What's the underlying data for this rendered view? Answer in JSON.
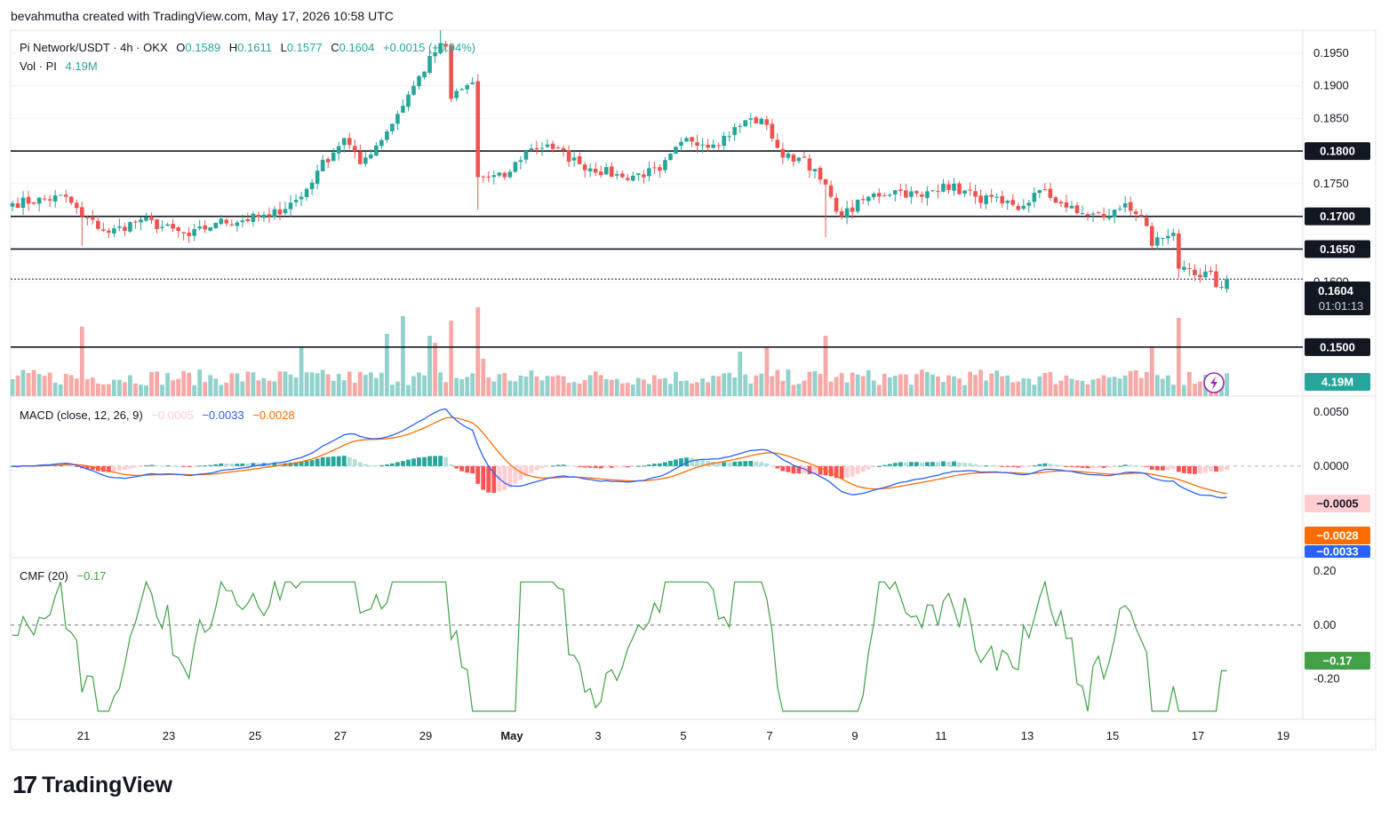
{
  "header": {
    "attribution": "bevahmutha created with TradingView.com, May 17, 2026 10:58 UTC"
  },
  "legend": {
    "symbol": "Pi Network/USDT · 4h · OKX",
    "o_label": "O",
    "o_value": "0.1589",
    "h_label": "H",
    "h_value": "0.1611",
    "l_label": "L",
    "l_value": "0.1577",
    "c_label": "C",
    "c_value": "0.1604",
    "change": "+0.0015 (+0.94%)",
    "vol_label": "Vol · PI",
    "vol_value": "4.19M"
  },
  "macd_legend": {
    "label": "MACD (close, 12, 26, 9)",
    "hist": "−0.0005",
    "macd": "−0.0033",
    "signal": "−0.0028"
  },
  "cmf_legend": {
    "label": "CMF (20)",
    "value": "−0.17"
  },
  "price_badges": {
    "current": "0.1604",
    "countdown": "01:01:13",
    "volume": "4.19M",
    "macd_hist": "−0.0005",
    "macd_signal": "−0.0028",
    "macd_line": "−0.0033",
    "cmf": "−0.17"
  },
  "logo": {
    "text": "TradingView"
  },
  "colors": {
    "up": "#26a69a",
    "down": "#ef5350",
    "up_vol": "#92d2cc",
    "down_vol": "#f7a9a7",
    "macd": "#2962ff",
    "signal": "#ff6d00",
    "hist_up_strong": "#26a69a",
    "hist_up_weak": "#b2dfdb",
    "hist_down_strong": "#ff5252",
    "hist_down_weak": "#ffcdd2",
    "cmf": "#43a047",
    "hline": "#131722"
  },
  "chart_data": {
    "type": "candlestick",
    "price_axis": {
      "ylim": [
        0.1425,
        0.1985
      ],
      "ticks": [
        "0.1950",
        "0.1900",
        "0.1850",
        "0.1800",
        "0.1750",
        "0.1700",
        "0.1650",
        "0.1600",
        "0.1500"
      ]
    },
    "macd_axis": {
      "ylim": [
        -0.0085,
        0.0065
      ],
      "ticks": [
        "0.0050",
        "0.0000"
      ]
    },
    "cmf_axis": {
      "ylim": [
        -0.35,
        0.25
      ],
      "ticks": [
        "0.20",
        "0.00",
        "-0.20"
      ]
    },
    "x_ticks": [
      "21",
      "23",
      "25",
      "27",
      "29",
      "May",
      "3",
      "5",
      "7",
      "9",
      "11",
      "13",
      "15",
      "17",
      "19"
    ],
    "horizontal_levels": [
      0.18,
      0.17,
      0.165,
      0.15
    ],
    "level_labels": [
      "0.1800",
      "0.1700",
      "0.1650",
      "0.1500"
    ],
    "current_price": 0.1604,
    "anchors": [
      {
        "i": 0,
        "p": 0.172
      },
      {
        "i": 10,
        "p": 0.173
      },
      {
        "i": 13,
        "p": 0.17
      },
      {
        "i": 18,
        "p": 0.1675
      },
      {
        "i": 24,
        "p": 0.1695
      },
      {
        "i": 33,
        "p": 0.167
      },
      {
        "i": 38,
        "p": 0.169
      },
      {
        "i": 48,
        "p": 0.17
      },
      {
        "i": 54,
        "p": 0.173
      },
      {
        "i": 57,
        "p": 0.177
      },
      {
        "i": 62,
        "p": 0.182
      },
      {
        "i": 65,
        "p": 0.178
      },
      {
        "i": 70,
        "p": 0.183
      },
      {
        "i": 75,
        "p": 0.19
      },
      {
        "i": 80,
        "p": 0.1965
      },
      {
        "i": 81,
        "p": 0.196
      },
      {
        "i": 82,
        "p": 0.188
      },
      {
        "i": 86,
        "p": 0.1905
      },
      {
        "i": 87,
        "p": 0.176
      },
      {
        "i": 92,
        "p": 0.176
      },
      {
        "i": 96,
        "p": 0.18
      },
      {
        "i": 100,
        "p": 0.181
      },
      {
        "i": 106,
        "p": 0.178
      },
      {
        "i": 114,
        "p": 0.176
      },
      {
        "i": 121,
        "p": 0.177
      },
      {
        "i": 126,
        "p": 0.182
      },
      {
        "i": 131,
        "p": 0.181
      },
      {
        "i": 138,
        "p": 0.185
      },
      {
        "i": 141,
        "p": 0.184
      },
      {
        "i": 144,
        "p": 0.179
      },
      {
        "i": 148,
        "p": 0.179
      },
      {
        "i": 153,
        "p": 0.173
      },
      {
        "i": 155,
        "p": 0.17
      },
      {
        "i": 160,
        "p": 0.173
      },
      {
        "i": 165,
        "p": 0.174
      },
      {
        "i": 170,
        "p": 0.173
      },
      {
        "i": 174,
        "p": 0.175
      },
      {
        "i": 180,
        "p": 0.173
      },
      {
        "i": 185,
        "p": 0.172
      },
      {
        "i": 188,
        "p": 0.171
      },
      {
        "i": 192,
        "p": 0.174
      },
      {
        "i": 196,
        "p": 0.172
      },
      {
        "i": 199,
        "p": 0.1705
      },
      {
        "i": 205,
        "p": 0.17
      },
      {
        "i": 208,
        "p": 0.172
      },
      {
        "i": 211,
        "p": 0.17
      },
      {
        "i": 213,
        "p": 0.1655
      },
      {
        "i": 216,
        "p": 0.167
      },
      {
        "i": 217,
        "p": 0.1675
      },
      {
        "i": 218,
        "p": 0.162
      },
      {
        "i": 221,
        "p": 0.161
      },
      {
        "i": 224,
        "p": 0.1615
      },
      {
        "i": 225,
        "p": 0.1592
      },
      {
        "i": 227,
        "p": 0.1604
      }
    ],
    "big_volume_bars": [
      {
        "i": 13,
        "v": 0.78,
        "up": false
      },
      {
        "i": 54,
        "v": 0.55,
        "up": true
      },
      {
        "i": 70,
        "v": 0.7,
        "up": true
      },
      {
        "i": 73,
        "v": 0.9,
        "up": true
      },
      {
        "i": 78,
        "v": 0.68,
        "up": true
      },
      {
        "i": 79,
        "v": 0.6,
        "up": false
      },
      {
        "i": 82,
        "v": 0.85,
        "up": false
      },
      {
        "i": 87,
        "v": 1.0,
        "up": false
      },
      {
        "i": 88,
        "v": 0.42,
        "up": false
      },
      {
        "i": 152,
        "v": 0.68,
        "up": false
      },
      {
        "i": 213,
        "v": 0.55,
        "up": false
      },
      {
        "i": 218,
        "v": 0.88,
        "up": false
      },
      {
        "i": 136,
        "v": 0.5,
        "up": true
      },
      {
        "i": 141,
        "v": 0.55,
        "up": false
      }
    ]
  }
}
